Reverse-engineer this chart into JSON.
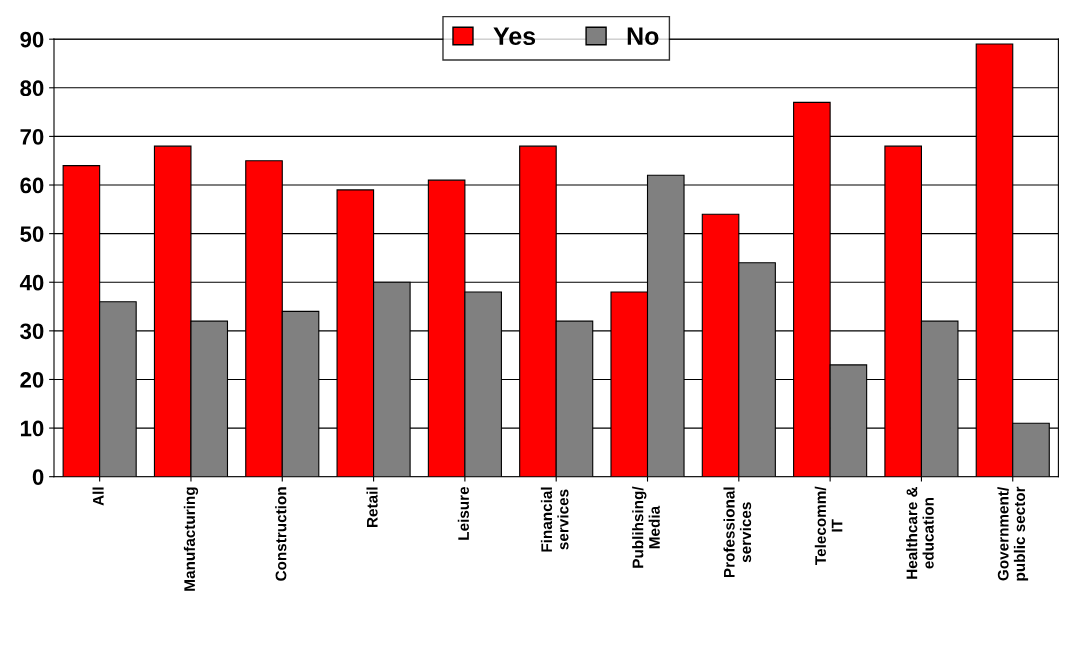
{
  "chart_data": {
    "type": "bar",
    "categories": [
      "All",
      "Manufacturing",
      "Construction",
      "Retail",
      "Leisure",
      "Financial\nservices",
      "Publihsing/\nMedia",
      "Professional\nservices",
      "Telecomm/\nIT",
      "Healthcare &\neducation",
      "Government/\npublic sector"
    ],
    "series": [
      {
        "name": "Yes",
        "color": "#ff0000",
        "values": [
          64,
          68,
          65,
          59,
          61,
          68,
          38,
          54,
          77,
          68,
          89
        ]
      },
      {
        "name": "No",
        "color": "#808080",
        "values": [
          36,
          32,
          34,
          40,
          38,
          32,
          62,
          44,
          23,
          32,
          11
        ]
      }
    ],
    "ylim": [
      0,
      90
    ],
    "yticks": [
      0,
      10,
      20,
      30,
      40,
      50,
      60,
      70,
      80,
      90
    ],
    "grid": "y",
    "legend": "top"
  }
}
